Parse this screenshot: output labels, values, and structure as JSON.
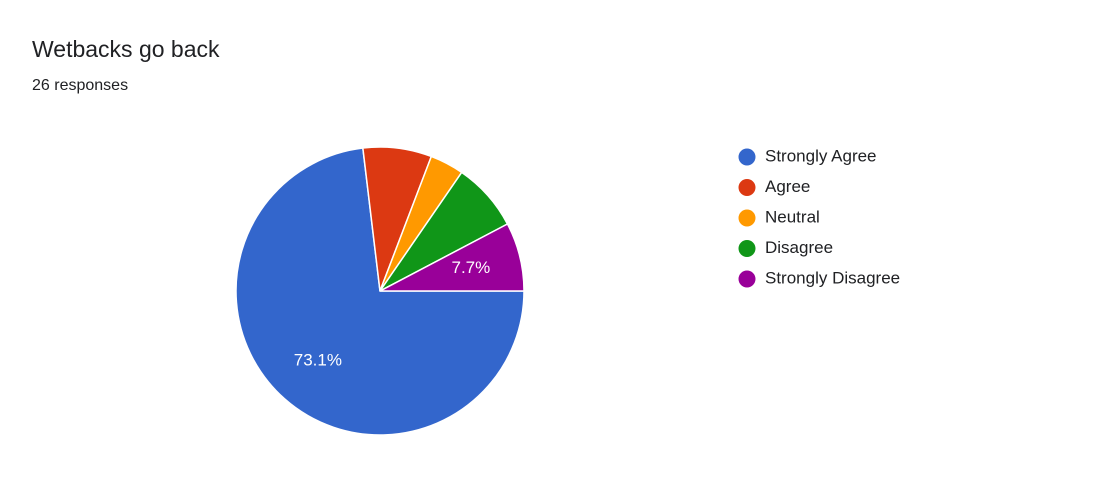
{
  "chart_data": {
    "type": "pie",
    "title": "Wetbacks go back",
    "subtitle": "26 responses",
    "categories": [
      "Strongly Agree",
      "Agree",
      "Neutral",
      "Disagree",
      "Strongly Disagree"
    ],
    "values": [
      73.1,
      7.7,
      3.8,
      7.7,
      7.7
    ],
    "value_labels": [
      "73.1%",
      null,
      null,
      null,
      "7.7%"
    ],
    "colors": [
      "#3366cc",
      "#dc3912",
      "#ff9900",
      "#109618",
      "#990099"
    ],
    "legend": "right"
  }
}
